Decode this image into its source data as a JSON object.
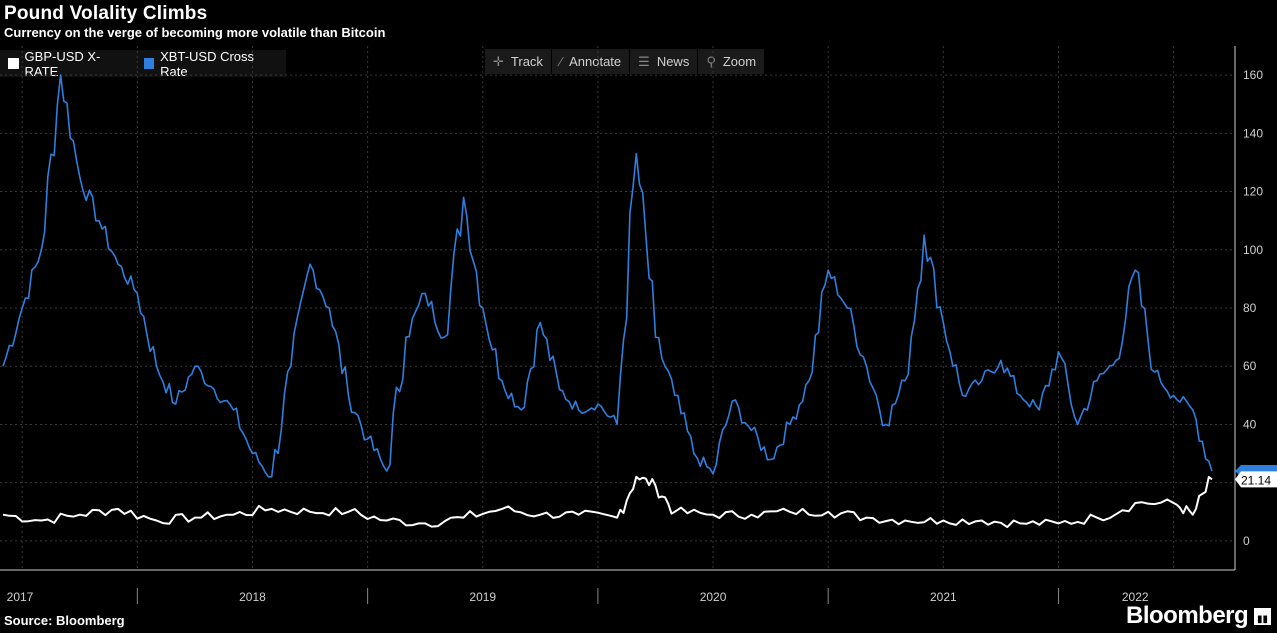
{
  "title": "Pound Volality Climbs",
  "subtitle": "Currency on the verge of becoming more volatile than Bitcoin",
  "source": "Source: Bloomberg",
  "brand": "Bloomberg",
  "toolbar": {
    "track": "Track",
    "annotate": "Annotate",
    "news": "News",
    "zoom": "Zoom"
  },
  "colors": {
    "gbp": "#ffffff",
    "xbt": "#2f7fe0",
    "grid": "#3a3a3a",
    "axis": "#cfcfcf"
  },
  "chart_data": {
    "type": "line",
    "title": "Pound Volality Climbs",
    "subtitle": "Currency on the verge of becoming more volatile than Bitcoin",
    "ylim": [
      -10,
      170
    ],
    "yticks": [
      0,
      20,
      40,
      60,
      80,
      100,
      120,
      140,
      160
    ],
    "x_ticks": [
      "2017",
      "2018",
      "2019",
      "2020",
      "2021",
      "2022"
    ],
    "x_range": [
      "2017-06",
      "2022-09"
    ],
    "grid": true,
    "legend_position": "top-left",
    "last_value_label": "21.14",
    "series": [
      {
        "name": "GBP-USD X-RATE",
        "color": "#ffffff",
        "points": [
          [
            "2017-06",
            9
          ],
          [
            "2017-08",
            7
          ],
          [
            "2017-10",
            9
          ],
          [
            "2017-12",
            11
          ],
          [
            "2018-02",
            7
          ],
          [
            "2018-04",
            8
          ],
          [
            "2018-06",
            9
          ],
          [
            "2018-08",
            11
          ],
          [
            "2018-10",
            10
          ],
          [
            "2018-12",
            10
          ],
          [
            "2019-02",
            7
          ],
          [
            "2019-04",
            6
          ],
          [
            "2019-06",
            8
          ],
          [
            "2019-08",
            11
          ],
          [
            "2019-10",
            9
          ],
          [
            "2019-12",
            9
          ],
          [
            "2020-02",
            8
          ],
          [
            "2020-03",
            22
          ],
          [
            "2020-04",
            19
          ],
          [
            "2020-05",
            10
          ],
          [
            "2020-07",
            9
          ],
          [
            "2020-09",
            9
          ],
          [
            "2020-11",
            10
          ],
          [
            "2021-01",
            10
          ],
          [
            "2021-03",
            8
          ],
          [
            "2021-05",
            7
          ],
          [
            "2021-07",
            7
          ],
          [
            "2021-09",
            7
          ],
          [
            "2021-11",
            6
          ],
          [
            "2022-01",
            6
          ],
          [
            "2022-03",
            8
          ],
          [
            "2022-05",
            13
          ],
          [
            "2022-07",
            13
          ],
          [
            "2022-08",
            9
          ],
          [
            "2022-09",
            21.14
          ]
        ]
      },
      {
        "name": "XBT-USD Cross Rate",
        "color": "#2f7fe0",
        "points": [
          [
            "2017-06",
            60
          ],
          [
            "2017-07",
            80
          ],
          [
            "2017-08",
            100
          ],
          [
            "2017-09",
            160
          ],
          [
            "2017-10",
            125
          ],
          [
            "2017-11",
            110
          ],
          [
            "2017-12",
            95
          ],
          [
            "2018-01",
            85
          ],
          [
            "2018-02",
            60
          ],
          [
            "2018-03",
            47
          ],
          [
            "2018-04",
            60
          ],
          [
            "2018-05",
            52
          ],
          [
            "2018-06",
            45
          ],
          [
            "2018-07",
            30
          ],
          [
            "2018-08",
            22
          ],
          [
            "2018-09",
            60
          ],
          [
            "2018-10",
            95
          ],
          [
            "2018-11",
            80
          ],
          [
            "2018-12",
            50
          ],
          [
            "2019-01",
            35
          ],
          [
            "2019-02",
            24
          ],
          [
            "2019-03",
            70
          ],
          [
            "2019-04",
            85
          ],
          [
            "2019-05",
            70
          ],
          [
            "2019-06",
            118
          ],
          [
            "2019-07",
            80
          ],
          [
            "2019-08",
            55
          ],
          [
            "2019-09",
            45
          ],
          [
            "2019-10",
            75
          ],
          [
            "2019-11",
            52
          ],
          [
            "2019-12",
            45
          ],
          [
            "2020-01",
            47
          ],
          [
            "2020-02",
            40
          ],
          [
            "2020-03",
            133
          ],
          [
            "2020-04",
            70
          ],
          [
            "2020-05",
            50
          ],
          [
            "2020-06",
            30
          ],
          [
            "2020-07",
            23
          ],
          [
            "2020-08",
            48
          ],
          [
            "2020-09",
            38
          ],
          [
            "2020-10",
            28
          ],
          [
            "2020-11",
            40
          ],
          [
            "2020-12",
            55
          ],
          [
            "2021-01",
            93
          ],
          [
            "2021-02",
            80
          ],
          [
            "2021-03",
            60
          ],
          [
            "2021-04",
            40
          ],
          [
            "2021-05",
            55
          ],
          [
            "2021-06",
            105
          ],
          [
            "2021-07",
            75
          ],
          [
            "2021-08",
            50
          ],
          [
            "2021-09",
            55
          ],
          [
            "2021-10",
            62
          ],
          [
            "2021-11",
            50
          ],
          [
            "2021-12",
            45
          ],
          [
            "2022-01",
            65
          ],
          [
            "2022-02",
            40
          ],
          [
            "2022-03",
            55
          ],
          [
            "2022-04",
            62
          ],
          [
            "2022-05",
            93
          ],
          [
            "2022-06",
            58
          ],
          [
            "2022-07",
            50
          ],
          [
            "2022-08",
            45
          ],
          [
            "2022-09",
            24
          ]
        ]
      }
    ]
  }
}
